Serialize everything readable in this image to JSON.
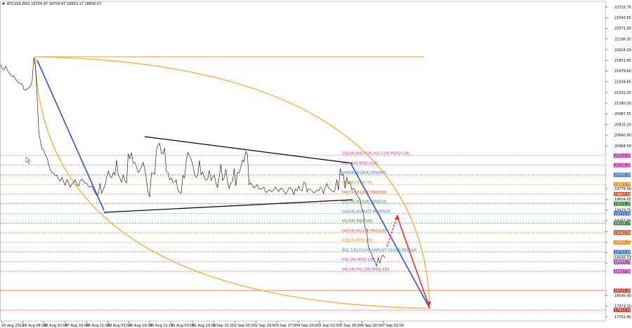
{
  "chart_title": "BTCUSD,M30  18704.97 18704.97 18653.17 18656.57",
  "colors": {
    "price": "#000000",
    "gann_arc": "#f0a020",
    "blue_line": "#3050c8",
    "red_arrow": "#e03030",
    "triangle": "#000000"
  },
  "chart_data": {
    "type": "line",
    "title": "BTCUSD,M30  18704.97 18704.97 18653.17 18656.57",
    "ylim": [
      17701.95,
      22715.75
    ],
    "price_labels": [
      "22715.75",
      "22543.55",
      "22371.25",
      "22196.35",
      "22024.20",
      "21851.65",
      "21679.60",
      "21504.65",
      "21332.25",
      "21160.20",
      "20987.55",
      "20815.20",
      "20640.80",
      "20468.50",
      "19776.90",
      "19604.65",
      "19429.75",
      "19257.95",
      "19082.90",
      "18912.90",
      "18737.00",
      "18566.65",
      "18046.45",
      "17874.20",
      "17701.95"
    ],
    "x_labels": [
      "25 Aug 2022",
      "26 Aug 04:00",
      "26 Aug 20:00",
      "27 Aug 16:00",
      "28 Aug 11:00",
      "29 Aug 03:00",
      "29 Aug 19:00",
      "30 Aug 11:00",
      "31 Aug 03:00",
      "31 Aug 19:00",
      "1 Sep 11:00",
      "2 Sep 03:00",
      "2 Sep 19:00",
      "3 Sep 17:00",
      "4 Sep 10:00",
      "5 Sep 02:00",
      "5 Sep 18:00",
      "6 Sep 10:00",
      "7 Sep 02:00"
    ],
    "price_series": [
      21780,
      21720,
      21700,
      21760,
      21690,
      21650,
      21620,
      21590,
      21600,
      21540,
      21520,
      21480,
      21470,
      21470,
      21380,
      21370,
      21390,
      21410,
      21440,
      21520,
      21900,
      21760,
      21250,
      20710,
      20530,
      20420,
      20400,
      20320,
      20280,
      20160,
      20080,
      20030,
      20030,
      19990,
      19990,
      19930,
      19900,
      19960,
      19890,
      19830,
      19920,
      19870,
      19800,
      19850,
      19880,
      19920,
      19840,
      19820,
      19900,
      19930,
      19900,
      19860,
      19860,
      19810,
      19800,
      19820,
      19760,
      19710,
      19670,
      19700,
      19860,
      19700,
      19770,
      19820,
      19960,
      20060,
      19970,
      19950,
      20040,
      20000,
      20240,
      19990,
      19950,
      19880,
      20000,
      19900,
      19870,
      20340,
      20260,
      20360,
      20190,
      20200,
      20130,
      20040,
      20060,
      20130,
      20200,
      20100,
      19920,
      19730,
      19640,
      20030,
      20030,
      20010,
      20400,
      20480,
      20510,
      20350,
      20340,
      20430,
      20060,
      20040,
      19920,
      19950,
      19880,
      19880,
      19920,
      19750,
      19720,
      19700,
      19990,
      19950,
      20210,
      20360,
      20310,
      20250,
      20170,
      20010,
      19960,
      19990,
      20230,
      20000,
      20050,
      19960,
      19910,
      19930,
      20070,
      19910,
      19960,
      19990,
      19870,
      19790,
      19970,
      20170,
      19910,
      19950,
      20090,
      19880,
      19780,
      19870,
      19890,
      20100,
      19820,
      20040,
      20030,
      20120,
      20240,
      20210,
      20380,
      20340,
      19840,
      19870,
      19830,
      19790,
      19810,
      19840,
      19770,
      19770,
      19780,
      19800,
      19720,
      19720,
      19760,
      19740,
      19730,
      19760,
      19800,
      19760,
      19730,
      19780,
      19770,
      19740,
      19690,
      19720,
      19790,
      19790,
      19760,
      19680,
      19770,
      19740,
      19820,
      19760,
      19740,
      19880,
      19870,
      19720,
      19780,
      19760,
      19740,
      19710,
      19720,
      19750,
      19740,
      19800,
      19780,
      19700,
      19790,
      19860,
      19790,
      19770,
      19740,
      19720,
      19760,
      19920,
      19750,
      20100,
      19990,
      20010,
      19780,
      19960,
      19860,
      19880,
      19760,
      19780,
      19750,
      19680,
      19640,
      19600,
      19460,
      19390,
      19140,
      19110,
      18840,
      18780,
      18710,
      18650,
      18600,
      18520,
      18660,
      18570,
      18680,
      18700,
      18656.57
    ],
    "levels": [
      {
        "label": "D1[2/8] H4[+1/8] H1[+2/8] M30[+2/8]",
        "value": 20312.5,
        "color": "#c030b0",
        "tag_bg": "#c030b0",
        "line_color": "#c030b0"
      },
      {
        "label": "H1[+1/8] M30[+1/8]",
        "value": 20156.25,
        "color": "#c030b0",
        "tag_bg": "#c030b0",
        "line_color": "#c030b0"
      },
      {
        "label": "H4[8/8] D1[8/8] M30[8/8]",
        "value": 20000.0,
        "color": "#3070d0",
        "tag_bg": "#3070d0",
        "line_color": "#3070d0"
      },
      {
        "label": "H1[7/8] M30[7/8]",
        "value": 19843.75,
        "color": "#e08a10",
        "tag_bg": "#e08a10",
        "line_color": "#e08a10"
      },
      {
        "label": "H4[7/8] H1[6/8] M30[6/8]",
        "value": 19687.5,
        "color": "#d05020",
        "tag_bg": "#d05020",
        "line_color": "#d05020"
      },
      {
        "label": "D1[1/8] H1[5/8] M30[5/8]",
        "value": 19531.25,
        "color": "#2e7d32",
        "tag_bg": "#2e7d32",
        "line_color": "#2e7d32"
      },
      {
        "label": "H4[6/8] H1PIVOT M30PIVOT",
        "value": 19375.0,
        "color": "#3070d0",
        "tag_bg": "#3070d0",
        "line_color": "#3070d0"
      },
      {
        "label": "H1[3/8] M30[3/8]",
        "value": 19218.75,
        "color": "#2e7d32",
        "tag_bg": "#2e7d32",
        "line_color": "#2e7d32"
      },
      {
        "label": "H4[5/8] H1[2/8] M30[2/8]",
        "value": 19062.5,
        "color": "#d05020",
        "tag_bg": "#d05020",
        "line_color": "#d05020"
      },
      {
        "label": "H1[1/8] M30[1/8]",
        "value": 18906.25,
        "color": "#e08a10",
        "tag_bg": "#e08a10",
        "line_color": "#e08a10"
      },
      {
        "label": "W1[-1/8] D1SUP H4PIVOT H1[0/8] M30SUP",
        "value": 18750.0,
        "color": "#3070d0",
        "tag_bg": "#3070d0",
        "line_color": "#3070d0"
      },
      {
        "label": "H1[-1/8] M30[-1/8]",
        "value": 18593.75,
        "color": "#c030b0",
        "tag_bg": "#c030b0",
        "line_color": "#c030b0"
      },
      {
        "label": "H4[3/8] H1[-2/8] M30[-2/8]",
        "value": 18437.5,
        "color": "#c030b0",
        "tag_bg": "#c030b0",
        "line_color": "#c030b0"
      },
      {
        "label": "",
        "value": 18125.0,
        "color": "#d03030",
        "tag_bg": "#d03030",
        "line_color": "#e07050"
      },
      {
        "label": "",
        "value": 17812.5,
        "color": "#d03030",
        "tag_bg": "#d03030",
        "line_color": "#d03030"
      }
    ],
    "level_tags": [
      "20312.50",
      "20156.25",
      "20000.00",
      "19843.75",
      "19687.50",
      "19531.25",
      "19375.00",
      "19218.75",
      "19062.50",
      "18906.25",
      "18750.00",
      "18593.75",
      "18437.50",
      "18125.00",
      "17812.50"
    ],
    "current_price": "18656.57"
  }
}
